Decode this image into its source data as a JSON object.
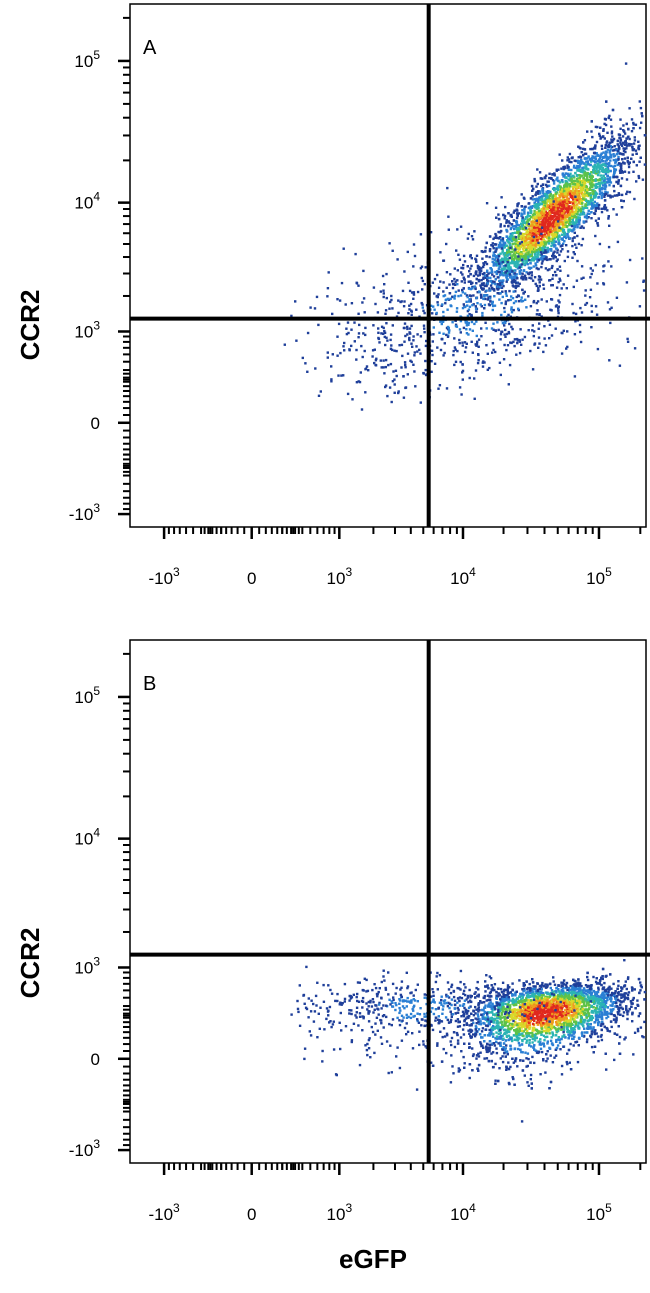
{
  "figure": {
    "xlabel": "eGFP"
  },
  "colors": {
    "density_scale": [
      "#1f3f9a",
      "#2a7fd4",
      "#2bb4b4",
      "#5cc24a",
      "#d9d92a",
      "#f09a1e",
      "#e0281e"
    ],
    "gate": "#000000",
    "axes": "#000000"
  },
  "chart_data": [
    {
      "type": "scatter",
      "subtype": "flow-cytometry-density-dot-plot",
      "panel_label": "A",
      "ylabel": "CCR2",
      "xlabel": "eGFP",
      "x_scale": "biexponential",
      "y_scale": "biexponential",
      "x_ticks": [
        {
          "value": -1000,
          "base": "-10",
          "exp": "3"
        },
        {
          "value": 0,
          "label": "0"
        },
        {
          "value": 1000,
          "base": "10",
          "exp": "3"
        },
        {
          "value": 10000,
          "base": "10",
          "exp": "4"
        },
        {
          "value": 100000,
          "base": "10",
          "exp": "5"
        }
      ],
      "y_ticks": [
        {
          "value": -1000,
          "base": "-10",
          "exp": "3"
        },
        {
          "value": 0,
          "label": "0"
        },
        {
          "value": 1000,
          "base": "10",
          "exp": "3"
        },
        {
          "value": 10000,
          "base": "10",
          "exp": "4"
        },
        {
          "value": 100000,
          "base": "10",
          "exp": "5"
        }
      ],
      "xlim": [
        -2000,
        220000
      ],
      "ylim": [
        -1300,
        250000
      ],
      "quadrant_gate": {
        "x": 5500,
        "y": 1300
      },
      "clusters": [
        {
          "center": [
            45000,
            8000
          ],
          "spread_log10": [
            0.28,
            0.28
          ],
          "correlation": 0.85,
          "count": 3800,
          "peak_density": 1.0
        },
        {
          "center": [
            12000,
            1600
          ],
          "spread_log10": [
            0.5,
            0.3
          ],
          "correlation": 0.3,
          "count": 700,
          "peak_density": 0.2
        },
        {
          "center": [
            3000,
            700
          ],
          "spread_log10": [
            0.45,
            0.35
          ],
          "correlation": 0.0,
          "count": 150,
          "peak_density": 0.08
        }
      ]
    },
    {
      "type": "scatter",
      "subtype": "flow-cytometry-density-dot-plot",
      "panel_label": "B",
      "ylabel": "CCR2",
      "xlabel": "eGFP",
      "x_scale": "biexponential",
      "y_scale": "biexponential",
      "x_ticks": [
        {
          "value": -1000,
          "base": "-10",
          "exp": "3"
        },
        {
          "value": 0,
          "label": "0"
        },
        {
          "value": 1000,
          "base": "10",
          "exp": "3"
        },
        {
          "value": 10000,
          "base": "10",
          "exp": "4"
        },
        {
          "value": 100000,
          "base": "10",
          "exp": "5"
        }
      ],
      "y_ticks": [
        {
          "value": -1000,
          "base": "-10",
          "exp": "3"
        },
        {
          "value": 0,
          "label": "0"
        },
        {
          "value": 1000,
          "base": "10",
          "exp": "3"
        },
        {
          "value": 10000,
          "base": "10",
          "exp": "4"
        },
        {
          "value": 100000,
          "base": "10",
          "exp": "5"
        }
      ],
      "xlim": [
        -2000,
        220000
      ],
      "ylim": [
        -1300,
        250000
      ],
      "quadrant_gate": {
        "x": 5500,
        "y": 1300
      },
      "clusters": [
        {
          "center": [
            40000,
            350
          ],
          "spread_log10": [
            0.3,
            0.0
          ],
          "y_spread_linear": 180,
          "correlation": 0.3,
          "count": 3500,
          "peak_density": 1.0
        },
        {
          "center": [
            5000,
            400
          ],
          "spread_log10": [
            0.45,
            0.0
          ],
          "y_spread_linear": 200,
          "correlation": 0.0,
          "count": 450,
          "peak_density": 0.2
        },
        {
          "center": [
            1200,
            250
          ],
          "spread_log10": [
            0.35,
            0.0
          ],
          "y_spread_linear": 150,
          "correlation": 0.0,
          "count": 60,
          "peak_density": 0.06
        }
      ]
    }
  ]
}
